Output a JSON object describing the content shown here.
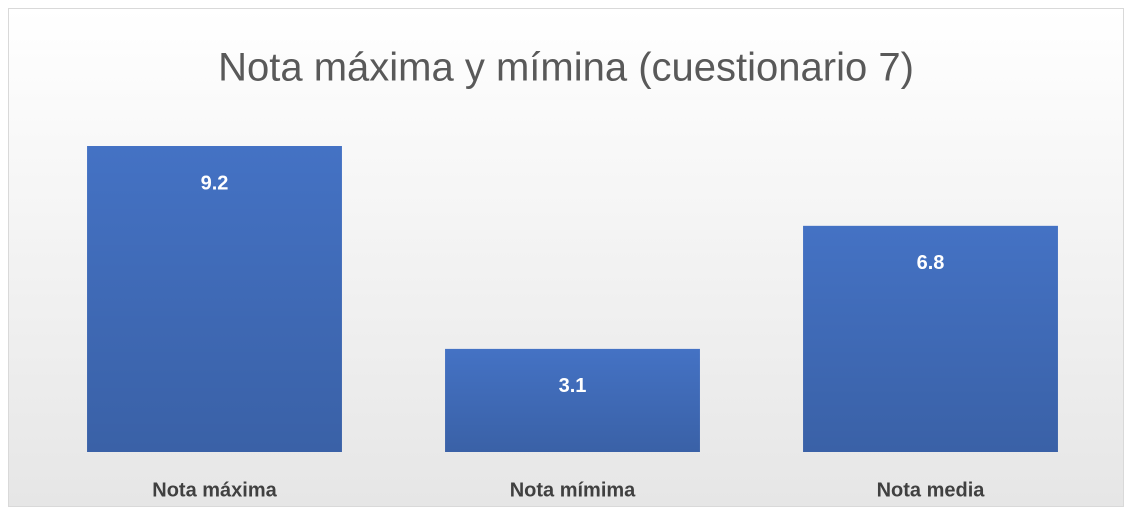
{
  "chart_data": {
    "type": "bar",
    "title": "Nota máxima y mímina (cuestionario 7)",
    "categories": [
      "Nota máxima",
      "Nota mímima",
      "Nota media"
    ],
    "values": [
      9.2,
      3.1,
      6.8
    ],
    "color": "#4472c4",
    "ylim": [
      0,
      10
    ],
    "data_labels": true
  }
}
